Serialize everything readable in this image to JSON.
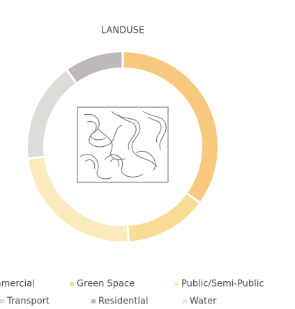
{
  "chart_data": {
    "type": "donut",
    "title": "LANDUSE",
    "categories": [
      "Commercial",
      "Green Space",
      "Public/Semi-Public",
      "Transport",
      "Residential",
      "Water"
    ],
    "values": [
      35,
      14,
      24,
      17,
      10,
      0
    ],
    "colors": [
      "#f7c97e",
      "#f9dc94",
      "#fbeabb",
      "#dedcd9",
      "#bdb9b9",
      "#e8e7e6"
    ]
  }
}
